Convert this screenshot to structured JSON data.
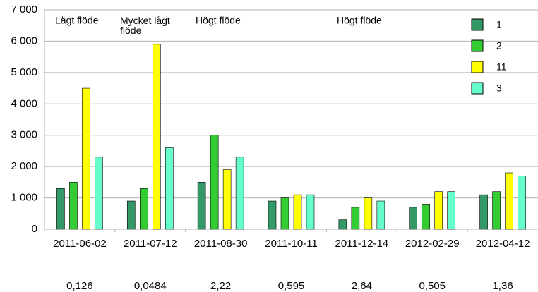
{
  "chart_data": {
    "type": "bar",
    "categories": [
      "2011-06-02",
      "2011-07-12",
      "2011-08-30",
      "2011-10-11",
      "2011-12-14",
      "2012-02-29",
      "2012-04-12"
    ],
    "category_sublabels": [
      "0,126",
      "0,0484",
      "2,22",
      "0,595",
      "2,64",
      "0,505",
      "1,36"
    ],
    "series": [
      {
        "name": "1",
        "color": "#339966",
        "values": [
          1300,
          900,
          1500,
          900,
          300,
          700,
          1100
        ]
      },
      {
        "name": "2",
        "color": "#33cc33",
        "values": [
          1500,
          1300,
          3000,
          1000,
          700,
          800,
          1200
        ]
      },
      {
        "name": "11",
        "color": "#ffff00",
        "values": [
          4500,
          5900,
          1900,
          1100,
          1000,
          1200,
          1800
        ]
      },
      {
        "name": "3",
        "color": "#66ffcc",
        "values": [
          2300,
          2600,
          2300,
          1100,
          900,
          1200,
          1700
        ]
      }
    ],
    "annotations": [
      "Lågt flöde",
      "Mycket lågt flöde",
      "Högt flöde",
      "Högt flöde"
    ],
    "ylim": [
      0,
      7000
    ],
    "yticks": [
      0,
      {
        "value": 1000,
        "label": "1 000"
      },
      {
        "value": 2000,
        "label": "2 000"
      },
      {
        "value": 3000,
        "label": "3 000"
      },
      {
        "value": 4000,
        "label": "4 000"
      },
      {
        "value": 5000,
        "label": "5 000"
      },
      {
        "value": 6000,
        "label": "6 000"
      },
      {
        "value": 7000,
        "label": "7 000"
      }
    ],
    "grid": true,
    "legend": "upper right"
  }
}
